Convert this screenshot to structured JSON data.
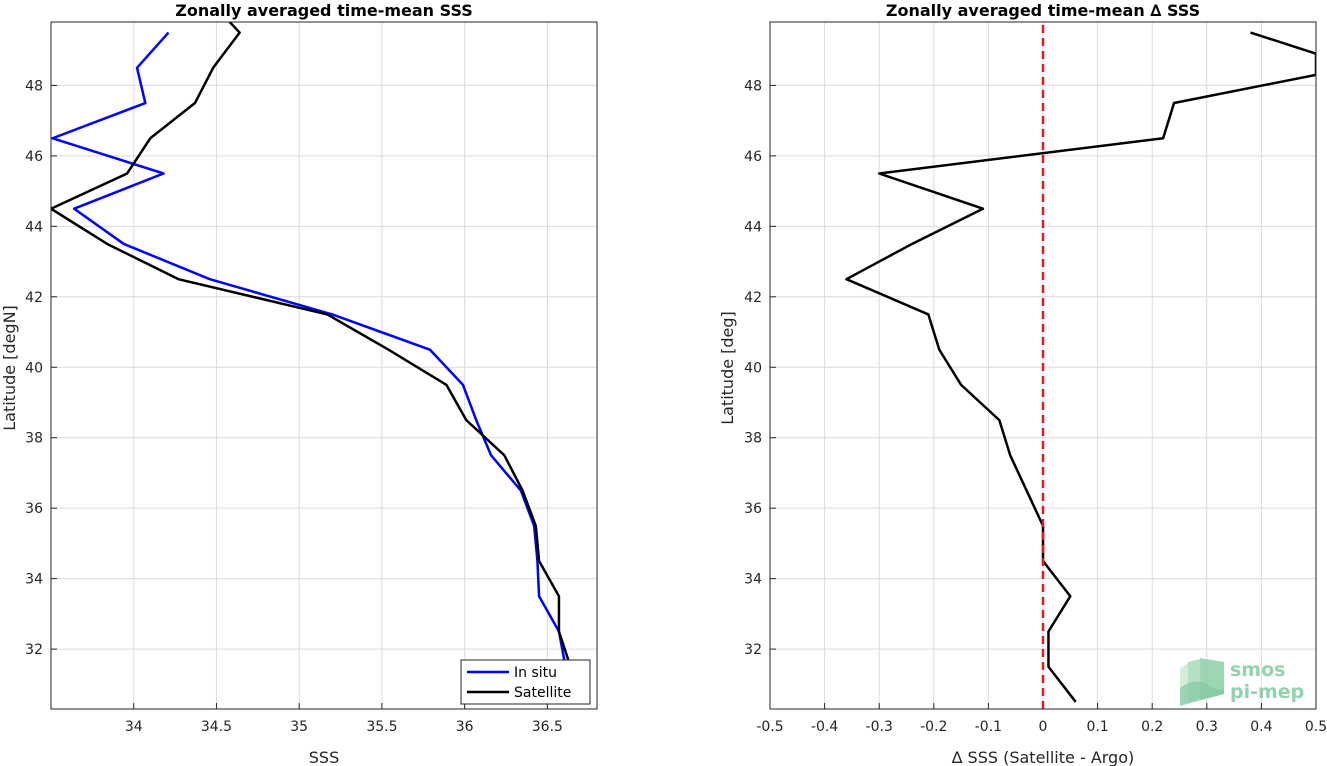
{
  "chart_data": [
    {
      "type": "line",
      "title": "Zonally averaged time-mean SSS",
      "xlabel": "SSS",
      "ylabel": "Latitude [degN]",
      "xlim": [
        33.5,
        36.8
      ],
      "ylim": [
        30.3,
        49.8
      ],
      "xticks": [
        "34",
        "34.5",
        "35",
        "35.5",
        "36",
        "36.5"
      ],
      "xtick_values": [
        34,
        34.5,
        35,
        35.5,
        36,
        36.5
      ],
      "yticks": [
        "32",
        "34",
        "36",
        "38",
        "40",
        "42",
        "44",
        "46",
        "48"
      ],
      "ytick_values": [
        32,
        34,
        36,
        38,
        40,
        42,
        44,
        46,
        48
      ],
      "grid": true,
      "legend_position": "bottom-right",
      "series": [
        {
          "name": "In situ",
          "color": "#0000ff",
          "points": [
            [
              34.21,
              49.5
            ],
            [
              34.02,
              48.5
            ],
            [
              34.07,
              47.5
            ],
            [
              33.51,
              46.5
            ],
            [
              34.18,
              45.5
            ],
            [
              33.64,
              44.5
            ],
            [
              33.94,
              43.5
            ],
            [
              34.46,
              42.5
            ],
            [
              35.2,
              41.5
            ],
            [
              35.79,
              40.5
            ],
            [
              35.99,
              39.5
            ],
            [
              36.07,
              38.5
            ],
            [
              36.16,
              37.5
            ],
            [
              36.34,
              36.5
            ],
            [
              36.42,
              35.5
            ],
            [
              36.44,
              34.5
            ],
            [
              36.45,
              33.5
            ],
            [
              36.57,
              32.5
            ],
            [
              36.61,
              31.5
            ],
            [
              36.67,
              30.5
            ]
          ]
        },
        {
          "name": "Satellite",
          "color": "#000000",
          "points": [
            [
              34.58,
              49.8
            ],
            [
              34.64,
              49.5
            ],
            [
              34.48,
              48.5
            ],
            [
              34.37,
              47.5
            ],
            [
              34.1,
              46.5
            ],
            [
              33.96,
              45.5
            ],
            [
              33.5,
              44.5
            ],
            [
              33.84,
              43.5
            ],
            [
              34.27,
              42.5
            ],
            [
              35.17,
              41.5
            ],
            [
              35.54,
              40.5
            ],
            [
              35.89,
              39.5
            ],
            [
              36.01,
              38.5
            ],
            [
              36.24,
              37.5
            ],
            [
              36.35,
              36.5
            ],
            [
              36.43,
              35.5
            ],
            [
              36.45,
              34.5
            ],
            [
              36.57,
              33.5
            ],
            [
              36.57,
              32.5
            ],
            [
              36.64,
              31.5
            ],
            [
              36.72,
              30.5
            ]
          ]
        }
      ]
    },
    {
      "type": "line",
      "title": "Zonally averaged time-mean ∆ SSS",
      "xlabel": "∆ SSS (Satellite - Argo)",
      "ylabel": "Latitude [deg]",
      "xlim": [
        -0.5,
        0.5
      ],
      "ylim": [
        30.3,
        49.8
      ],
      "xticks": [
        "-0.5",
        "-0.4",
        "-0.3",
        "-0.2",
        "-0.1",
        "0",
        "0.1",
        "0.2",
        "0.3",
        "0.4",
        "0.5"
      ],
      "xtick_values": [
        -0.5,
        -0.4,
        -0.3,
        -0.2,
        -0.1,
        0,
        0.1,
        0.2,
        0.3,
        0.4,
        0.5
      ],
      "yticks": [
        "32",
        "34",
        "36",
        "38",
        "40",
        "42",
        "44",
        "46",
        "48"
      ],
      "ytick_values": [
        32,
        34,
        36,
        38,
        40,
        42,
        44,
        46,
        48
      ],
      "grid": true,
      "series": [
        {
          "color": "#000000",
          "points": [
            [
              0.38,
              49.5
            ],
            [
              0.5,
              48.9
            ],
            [
              0.5,
              48.3
            ],
            [
              0.24,
              47.5
            ],
            [
              0.22,
              46.5
            ],
            [
              -0.3,
              45.5
            ],
            [
              -0.11,
              44.5
            ],
            [
              -0.24,
              43.5
            ],
            [
              -0.36,
              42.5
            ],
            [
              -0.21,
              41.5
            ],
            [
              -0.19,
              40.5
            ],
            [
              -0.15,
              39.5
            ],
            [
              -0.08,
              38.5
            ],
            [
              -0.06,
              37.5
            ],
            [
              -0.03,
              36.5
            ],
            [
              0.0,
              35.5
            ],
            [
              0.0,
              34.5
            ],
            [
              0.05,
              33.5
            ],
            [
              0.01,
              32.5
            ],
            [
              0.01,
              31.5
            ],
            [
              0.06,
              30.5
            ]
          ]
        },
        {
          "color": "#e41a1c",
          "style": "dashed",
          "points": [
            [
              0,
              30.3
            ],
            [
              0,
              49.8
            ]
          ]
        }
      ]
    }
  ],
  "watermark": {
    "line1": "smos",
    "line2": "pi-mep",
    "color": "#7fcba0"
  }
}
